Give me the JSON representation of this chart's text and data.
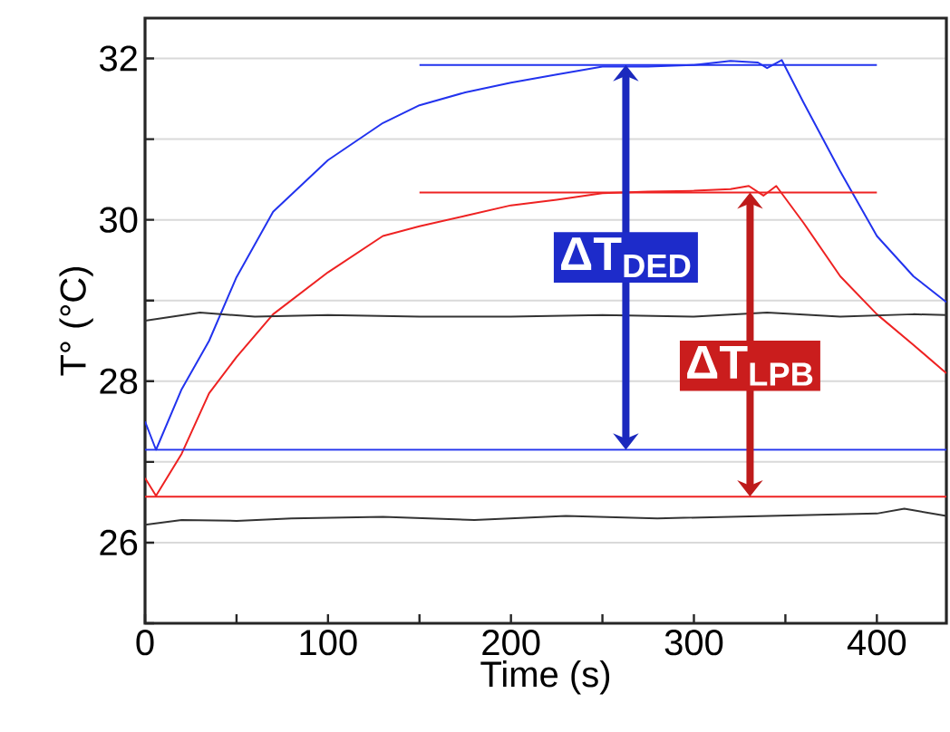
{
  "chart_data": {
    "type": "line",
    "xlabel": "Time (s)",
    "ylabel": "T° (°C)",
    "xlim": [
      0,
      438
    ],
    "ylim": [
      25,
      32.5
    ],
    "xticks": [
      0,
      {
        "value": 50,
        "label": null
      },
      100,
      {
        "value": 150,
        "label": null
      },
      200,
      {
        "value": 250,
        "label": null
      },
      300,
      {
        "value": 350,
        "label": null
      },
      400
    ],
    "yticks": [
      {
        "value": 25,
        "label": null
      },
      26,
      {
        "value": 27,
        "label": null
      },
      28,
      {
        "value": 29,
        "label": null
      },
      30,
      {
        "value": 31,
        "label": null
      },
      32
    ],
    "grid": "y",
    "marker": "none",
    "line_style": "solid",
    "series": [
      {
        "color": "#2233ee",
        "x": [
          0,
          6,
          20,
          35,
          50,
          70,
          100,
          130,
          150,
          175,
          200,
          225,
          250,
          275,
          300,
          320,
          335,
          340,
          348,
          360,
          380,
          400,
          420,
          438
        ],
        "values": [
          27.5,
          27.15,
          27.9,
          28.5,
          29.29,
          30.1,
          30.74,
          31.2,
          31.42,
          31.58,
          31.7,
          31.8,
          31.9,
          31.9,
          31.92,
          31.97,
          31.95,
          31.88,
          31.98,
          31.45,
          30.6,
          29.8,
          29.3,
          28.98
        ]
      },
      {
        "color": "#ee2222",
        "x": [
          0,
          6,
          20,
          35,
          50,
          70,
          100,
          130,
          150,
          175,
          200,
          225,
          250,
          275,
          300,
          320,
          330,
          338,
          345,
          360,
          380,
          400,
          420,
          438
        ],
        "values": [
          26.8,
          26.58,
          27.1,
          27.85,
          28.3,
          28.83,
          29.35,
          29.8,
          29.92,
          30.05,
          30.18,
          30.25,
          30.33,
          30.35,
          30.36,
          30.38,
          30.42,
          30.3,
          30.42,
          29.96,
          29.3,
          28.83,
          28.45,
          28.1
        ]
      },
      {
        "color": "#333333",
        "x": [
          0,
          15,
          30,
          60,
          100,
          150,
          200,
          250,
          300,
          340,
          380,
          420,
          438
        ],
        "values": [
          28.75,
          28.8,
          28.85,
          28.8,
          28.82,
          28.8,
          28.8,
          28.82,
          28.8,
          28.85,
          28.8,
          28.83,
          28.82
        ]
      },
      {
        "color": "#333333",
        "x": [
          0,
          20,
          50,
          80,
          130,
          180,
          230,
          280,
          320,
          360,
          400,
          415,
          438
        ],
        "values": [
          26.22,
          26.28,
          26.27,
          26.3,
          26.32,
          26.28,
          26.33,
          26.3,
          26.32,
          26.34,
          26.36,
          26.42,
          26.33
        ]
      },
      {
        "color": "#2233ee",
        "x": [
          0,
          438
        ],
        "values": [
          27.15,
          27.15
        ]
      },
      {
        "color": "#2233ee",
        "x": [
          150,
          400
        ],
        "values": [
          31.92,
          31.92
        ]
      },
      {
        "color": "#ee2222",
        "x": [
          0,
          438
        ],
        "values": [
          26.57,
          26.57
        ]
      },
      {
        "color": "#ee2222",
        "x": [
          150,
          400
        ],
        "values": [
          30.34,
          30.34
        ]
      }
    ],
    "annotations": [
      "ΔT$_{DED}$",
      "ΔT$_{LPB}$"
    ]
  }
}
